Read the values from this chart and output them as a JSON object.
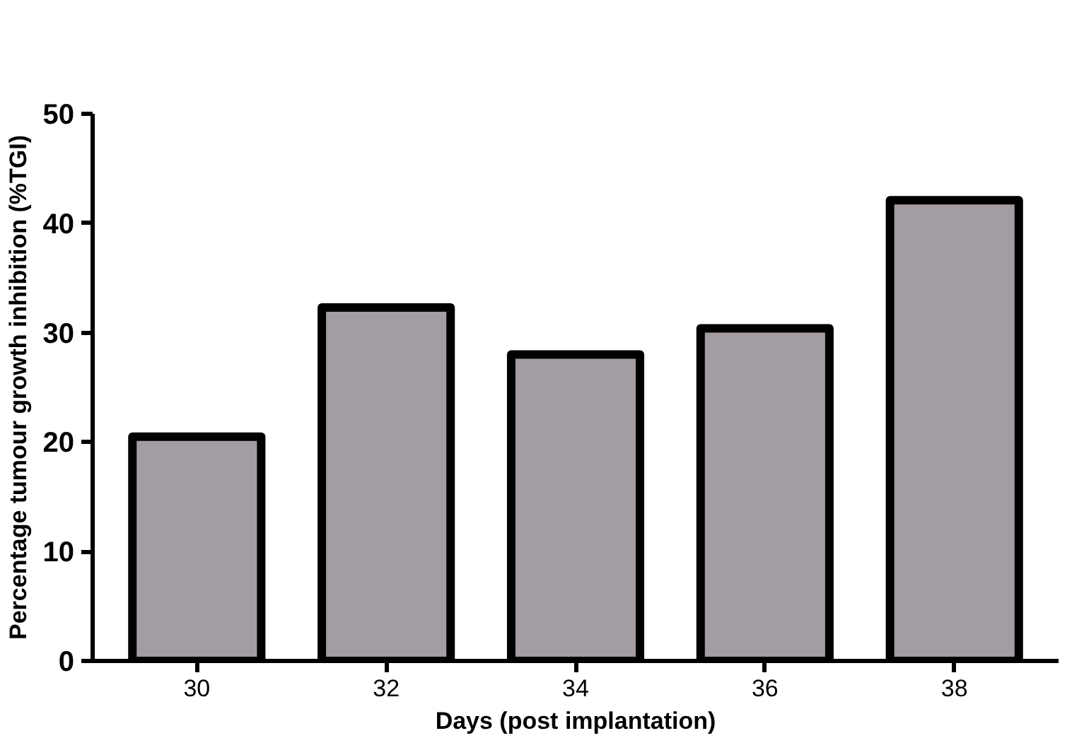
{
  "chart_data": {
    "type": "bar",
    "xlabel": "Days (post implantation)",
    "ylabel": "Percentage tumour growth inhibition (%TGI)",
    "categories": [
      "30",
      "32",
      "34",
      "36",
      "38"
    ],
    "values": [
      20.5,
      32.3,
      28,
      30.4,
      42.1
    ],
    "color": "#a39ca3",
    "ylim": [
      0,
      50
    ],
    "yticks": [
      0,
      10,
      20,
      30,
      40,
      50
    ],
    "grid": false
  }
}
